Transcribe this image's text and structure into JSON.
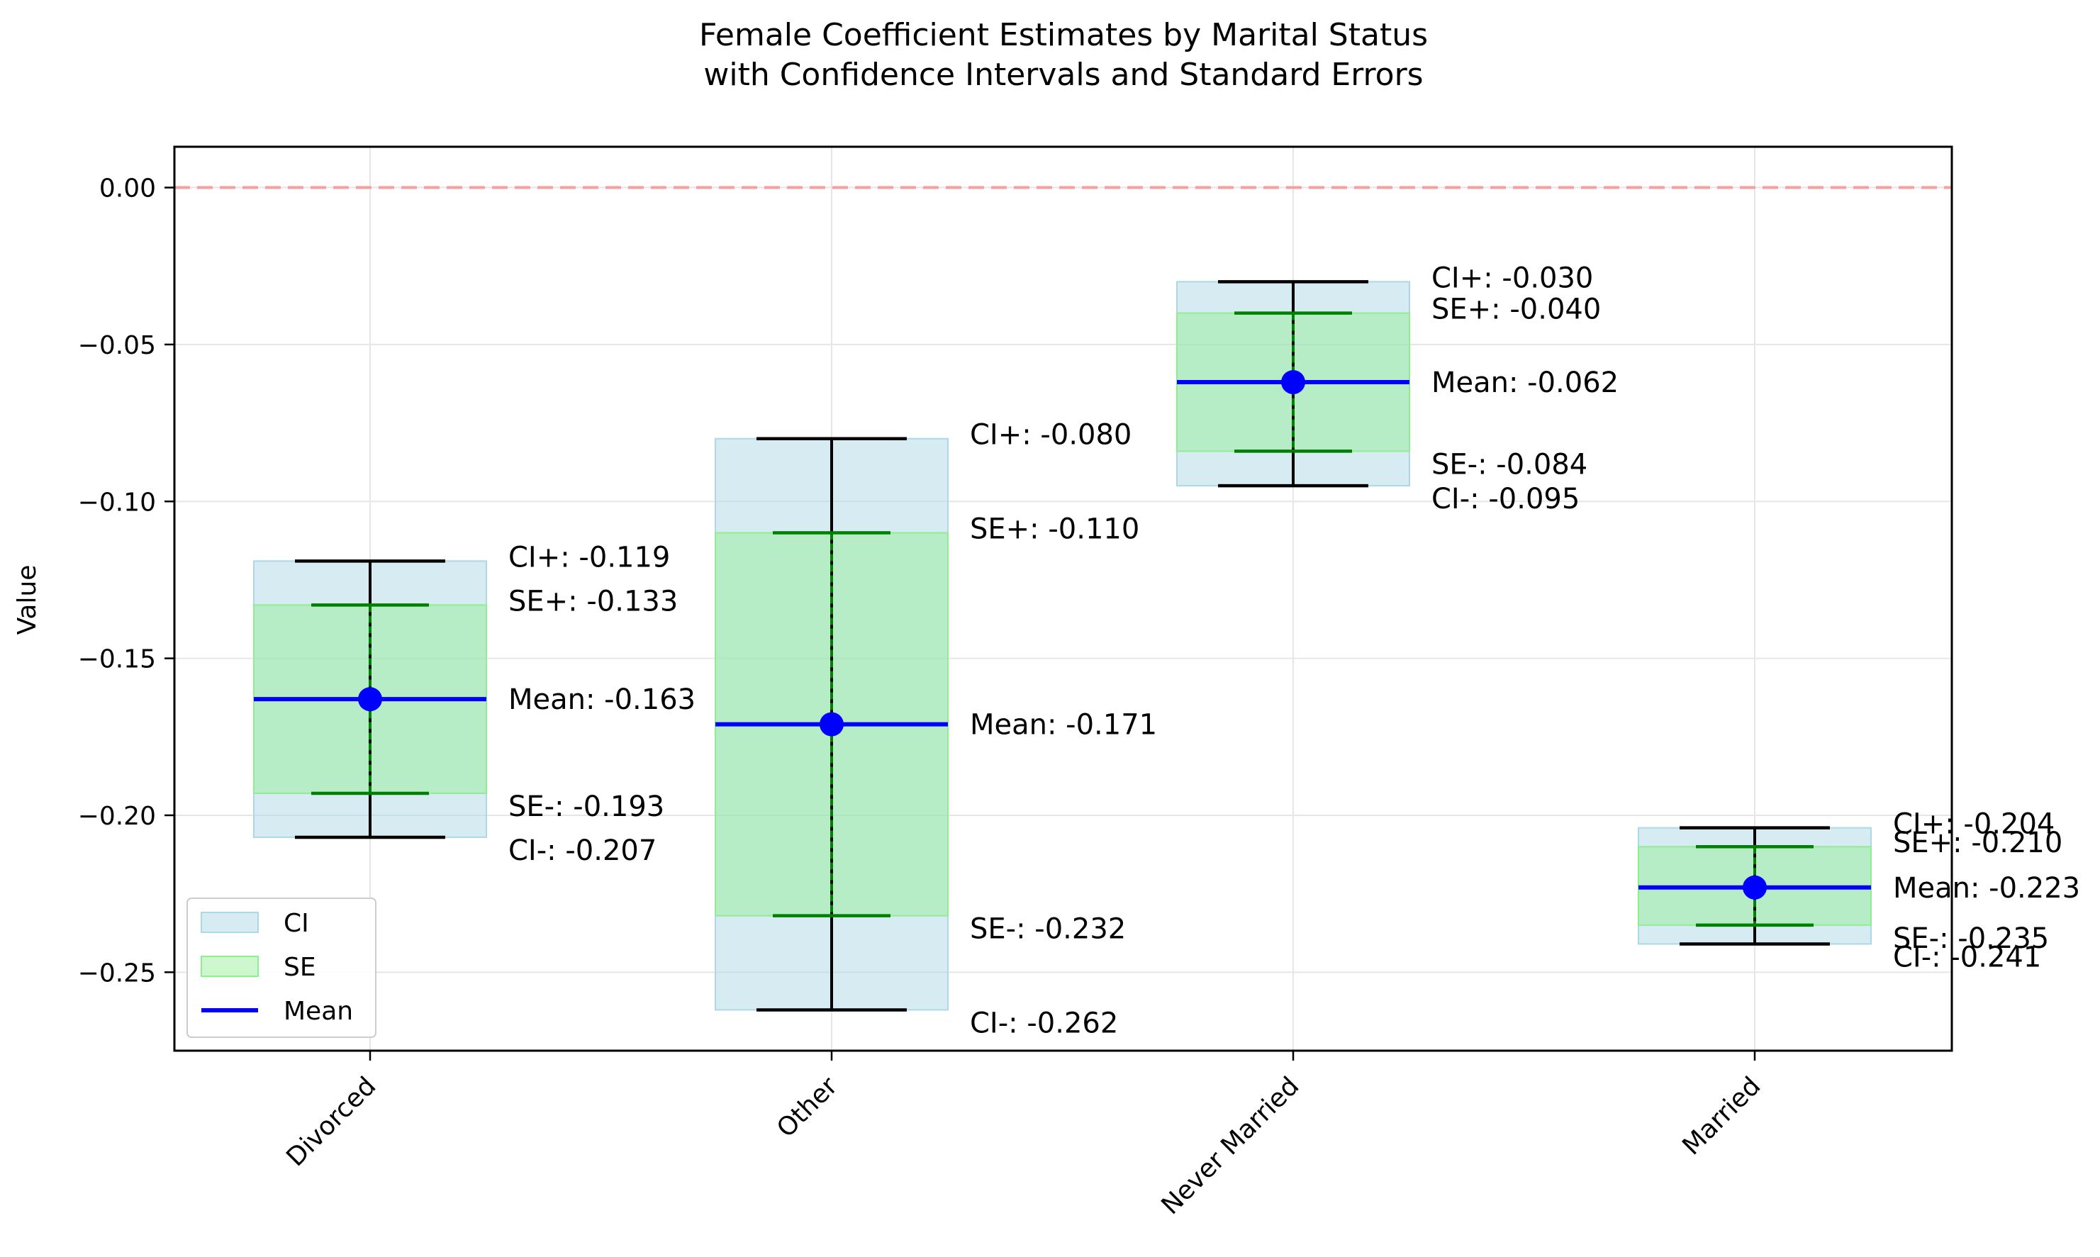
{
  "chart_data": {
    "type": "errorbar",
    "title": "Female Coefficient Estimates by Marital Status",
    "subtitle": "with Confidence Intervals and Standard Errors",
    "ylabel": "Value",
    "xlabel": "",
    "ylim": [
      -0.275,
      0.013
    ],
    "yticks": [
      "0.00",
      "−0.05",
      "−0.10",
      "−0.15",
      "−0.20",
      "−0.25"
    ],
    "ytick_values": [
      0.0,
      -0.05,
      -0.1,
      -0.15,
      -0.2,
      -0.25
    ],
    "reference_line": {
      "y": 0.0,
      "color": "#f4a09c",
      "style": "dashed"
    },
    "categories": [
      {
        "name": "Divorced",
        "mean": -0.163,
        "se_low": -0.193,
        "se_high": -0.133,
        "ci_low": -0.207,
        "ci_high": -0.119,
        "labels": {
          "ci_high": "CI+: -0.119",
          "se_high": "SE+: -0.133",
          "mean": "Mean: -0.163",
          "se_low": "SE-: -0.193",
          "ci_low": "CI-: -0.207"
        }
      },
      {
        "name": "Other",
        "mean": -0.171,
        "se_low": -0.232,
        "se_high": -0.11,
        "ci_low": -0.262,
        "ci_high": -0.08,
        "labels": {
          "ci_high": "CI+: -0.080",
          "se_high": "SE+: -0.110",
          "mean": "Mean: -0.171",
          "se_low": "SE-: -0.232",
          "ci_low": "CI-: -0.262"
        }
      },
      {
        "name": "Never Married",
        "mean": -0.062,
        "se_low": -0.084,
        "se_high": -0.04,
        "ci_low": -0.095,
        "ci_high": -0.03,
        "labels": {
          "ci_high": "CI+: -0.030",
          "se_high": "SE+: -0.040",
          "mean": "Mean: -0.062",
          "se_low": "SE-: -0.084",
          "ci_low": "CI-: -0.095"
        }
      },
      {
        "name": "Married",
        "mean": -0.223,
        "se_low": -0.235,
        "se_high": -0.21,
        "ci_low": -0.241,
        "ci_high": -0.204,
        "labels": {
          "ci_high": "CI+: -0.204",
          "se_high": "SE+: -0.210",
          "mean": "Mean: -0.223",
          "se_low": "SE-: -0.235",
          "ci_low": "CI-: -0.241"
        }
      }
    ],
    "legend": {
      "placement": "lower-left",
      "entries": [
        {
          "label": "CI",
          "color": "#add8e6"
        },
        {
          "label": "SE",
          "color": "#90ee90"
        },
        {
          "label": "Mean",
          "color": "#0000ff"
        }
      ]
    },
    "colors": {
      "ci_fill": "#add8e6",
      "se_fill": "#90ee90",
      "mean": "#0000ff",
      "se_bar": "#008000",
      "ci_bar": "#000000",
      "grid": "#e6e6e6"
    },
    "grid": true
  }
}
